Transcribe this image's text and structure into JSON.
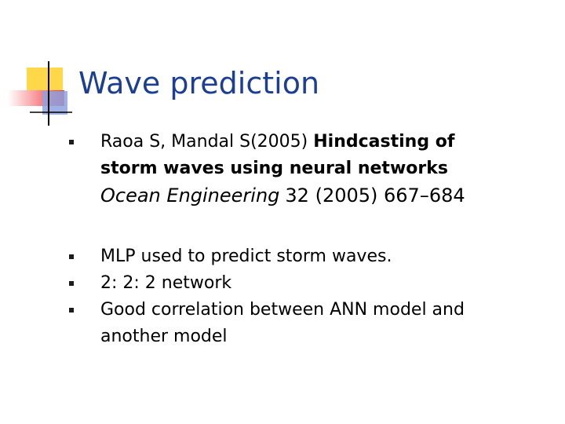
{
  "header": {
    "title": "Wave prediction"
  },
  "bullets": [
    {
      "authors": "Raoa S, Mandal S(2005)",
      "paper_title": "Hindcasting of storm waves using neural networks",
      "journal": "Ocean Engineering",
      "details": "32 (2005) 667–684"
    },
    {
      "text": "MLP used to predict storm waves."
    },
    {
      "text": "2: 2: 2 network"
    },
    {
      "text": "Good correlation between ANN model and another model"
    }
  ]
}
